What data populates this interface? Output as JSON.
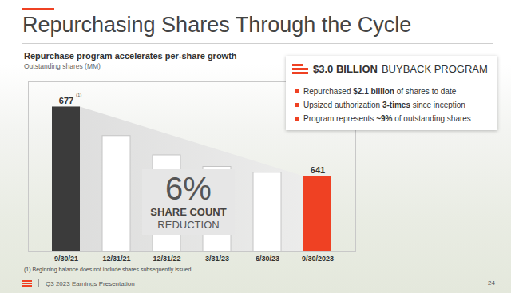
{
  "chart_data": {
    "type": "bar",
    "title": "Repurchasing Shares Through the Cycle",
    "subtitle": "Repurchase program accelerates per-share growth",
    "y_label": "Outstanding shares (MM)",
    "categories": [
      "9/30/21",
      "12/31/21",
      "12/31/22",
      "3/31/23",
      "6/30/23",
      "9/30/2023"
    ],
    "values": [
      677,
      662,
      652,
      646,
      643,
      641
    ],
    "colors": [
      "#3b3b3b",
      "#ffffff",
      "#ffffff",
      "#ffffff",
      "#ffffff",
      "#ef4123"
    ],
    "ylim": [
      602,
      690
    ],
    "yticks": [],
    "tick_labels": "x",
    "grid": false,
    "data_labels": true,
    "value_labels": [
      "677",
      null,
      null,
      null,
      null,
      "641"
    ],
    "label_note": {
      "text": "(1)",
      "category": "9/30/21"
    },
    "center_text": [
      "6%",
      "SHARE COUNT",
      "REDUCTION"
    ],
    "callout": {
      "title_bold": "$3.0 BILLION",
      "title_rest": "BUYBACK PROGRAM",
      "bullets": [
        [
          "Repurchased ",
          "$2.1 billion",
          " of shares to date"
        ],
        [
          "Upsized authorization ",
          "3-times",
          " since inception"
        ],
        [
          "Program represents ",
          "~9%",
          " of outstanding shares"
        ]
      ]
    },
    "footnote": "(1) Beginning balance does not include shares subsequently issued.",
    "footer": "Q3 2023 Earnings Presentation",
    "page_number": 24
  }
}
